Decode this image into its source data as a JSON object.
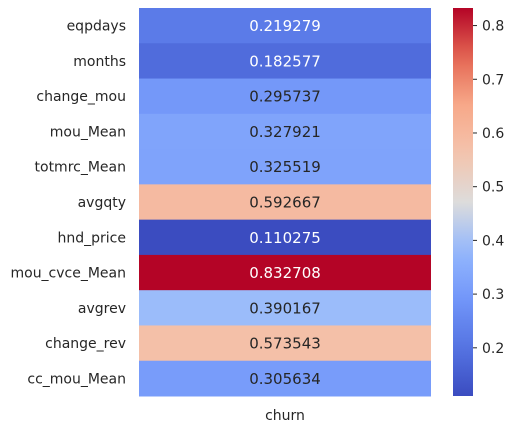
{
  "chart_data": {
    "type": "heatmap",
    "title": "",
    "xlabel": "",
    "ylabel": "",
    "columns": [
      "churn"
    ],
    "rows": [
      "eqpdays",
      "months",
      "change_mou",
      "mou_Mean",
      "totmrc_Mean",
      "avgqty",
      "hnd_price",
      "mou_cvce_Mean",
      "avgrev",
      "change_rev",
      "cc_mou_Mean"
    ],
    "values": [
      0.219279,
      0.182577,
      0.295737,
      0.327921,
      0.325519,
      0.592667,
      0.110275,
      0.832708,
      0.390167,
      0.573543,
      0.305634
    ],
    "value_labels": [
      "0.219279",
      "0.182577",
      "0.295737",
      "0.327921",
      "0.325519",
      "0.592667",
      "0.110275",
      "0.832708",
      "0.390167",
      "0.573543",
      "0.305634"
    ],
    "colormap": "coolwarm",
    "colorbar": {
      "vmin": 0.110275,
      "vmax": 0.832708,
      "ticks": [
        0.2,
        0.3,
        0.4,
        0.5,
        0.6,
        0.7,
        0.8
      ],
      "tick_labels": [
        "0.2",
        "0.3",
        "0.4",
        "0.5",
        "0.6",
        "0.7",
        "0.8"
      ]
    },
    "grid": false,
    "legend": "colorbar-right"
  }
}
